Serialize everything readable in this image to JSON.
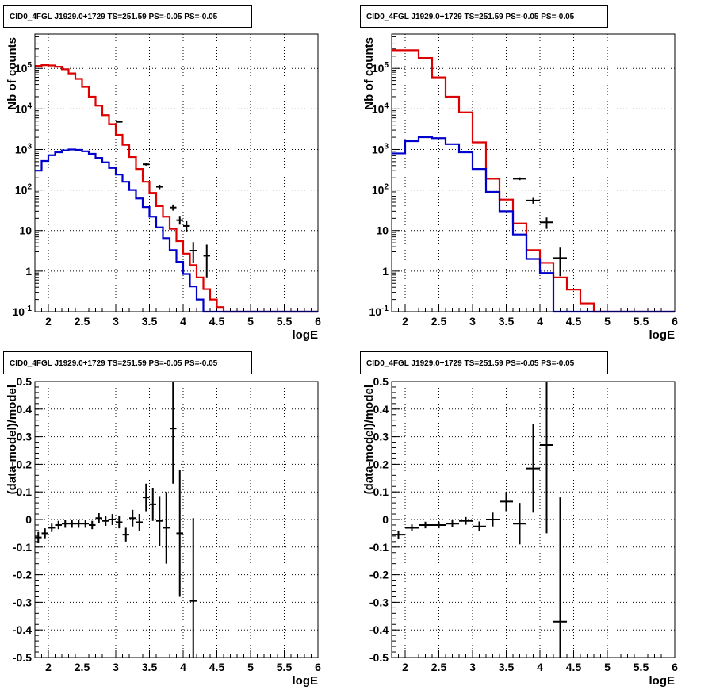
{
  "chart_data": [
    {
      "type": "line",
      "panel": "top-left",
      "title": "CID0_4FGL J1929.0+1729 TS=251.59 PS=-0.05 PS=-0.05",
      "xlabel": "logE",
      "ylabel": "Nb of counts",
      "yscale": "log",
      "xlim": [
        1.8,
        6
      ],
      "ylim": [
        0.1,
        700000
      ],
      "grid": true,
      "x_ticks": [
        "2",
        "2.5",
        "3",
        "3.5",
        "4",
        "4.5",
        "5",
        "5.5",
        "6"
      ],
      "y_ticks": [
        "10^-1",
        "1",
        "10",
        "10^2",
        "10^3",
        "10^4",
        "10^5"
      ],
      "bin_edges": [
        1.8,
        1.9,
        2.0,
        2.1,
        2.2,
        2.3,
        2.4,
        2.5,
        2.6,
        2.7,
        2.8,
        2.9,
        3.0,
        3.1,
        3.2,
        3.3,
        3.4,
        3.5,
        3.6,
        3.7,
        3.8,
        3.9,
        4.0,
        4.1,
        4.2,
        4.3,
        4.4,
        4.5,
        4.6,
        4.7,
        4.8,
        4.9,
        5.0,
        5.1,
        5.2,
        5.3,
        5.4,
        5.5,
        5.6,
        5.7,
        5.8,
        5.9,
        6.0
      ],
      "series": [
        {
          "color": "#dd0000",
          "values": [
            115000,
            120000,
            118000,
            110000,
            95000,
            75000,
            55000,
            35000,
            20000,
            12000,
            7000,
            4200,
            2300,
            1300,
            650,
            330,
            160,
            85,
            40,
            22,
            11,
            5.5,
            2.7,
            1.4,
            0.7,
            0.36,
            0.2,
            0.13,
            0.1,
            0.1,
            0.1,
            0.1,
            0.1,
            0.1,
            0.1,
            0.1,
            0.1,
            0.1,
            0.1,
            0.1,
            0.1,
            0.1
          ]
        },
        {
          "color": "#0000cc",
          "values": [
            300,
            520,
            720,
            850,
            950,
            1000,
            980,
            900,
            780,
            620,
            480,
            350,
            240,
            160,
            100,
            62,
            38,
            22,
            12,
            6.5,
            3.3,
            1.7,
            0.85,
            0.42,
            0.2,
            0.1,
            0.1,
            0.1,
            0.1,
            0.1,
            0.1,
            0.1,
            0.1,
            0.1,
            0.1,
            0.1,
            0.1,
            0.1,
            0.1,
            0.1,
            0.1,
            0.1
          ]
        }
      ],
      "points": [
        {
          "x": 3.05,
          "y": 4800,
          "xerr": 0.05,
          "ylo": 4600,
          "yhi": 5000
        },
        {
          "x": 3.45,
          "y": 430,
          "xerr": 0.05,
          "ylo": 400,
          "yhi": 460
        },
        {
          "x": 3.65,
          "y": 120,
          "xerr": 0.05,
          "ylo": 105,
          "yhi": 135
        },
        {
          "x": 3.85,
          "y": 37,
          "xerr": 0.05,
          "ylo": 31,
          "yhi": 44
        },
        {
          "x": 3.95,
          "y": 18,
          "xerr": 0.05,
          "ylo": 14,
          "yhi": 23
        },
        {
          "x": 4.05,
          "y": 13,
          "xerr": 0.05,
          "ylo": 9.5,
          "yhi": 17
        },
        {
          "x": 4.15,
          "y": 3.2,
          "xerr": 0.05,
          "ylo": 1.6,
          "yhi": 5.2
        },
        {
          "x": 4.35,
          "y": 2.4,
          "xerr": 0.05,
          "ylo": 0.7,
          "yhi": 4.5
        }
      ]
    },
    {
      "type": "line",
      "panel": "top-right",
      "title": "CID0_4FGL J1929.0+1729 TS=251.59 PS=-0.05 PS=-0.05",
      "xlabel": "logE",
      "ylabel": "Nb of counts",
      "yscale": "log",
      "xlim": [
        1.8,
        6
      ],
      "ylim": [
        0.1,
        700000
      ],
      "grid": true,
      "x_ticks": [
        "2",
        "2.5",
        "3",
        "3.5",
        "4",
        "4.5",
        "5",
        "5.5",
        "6"
      ],
      "y_ticks": [
        "10^-1",
        "1",
        "10",
        "10^2",
        "10^3",
        "10^4",
        "10^5"
      ],
      "bin_edges": [
        1.8,
        2.0,
        2.2,
        2.4,
        2.6,
        2.8,
        3.0,
        3.2,
        3.4,
        3.6,
        3.8,
        4.0,
        4.2,
        4.4,
        4.6,
        4.8,
        5.0,
        5.2,
        5.4,
        5.6,
        5.8,
        6.0
      ],
      "series": [
        {
          "color": "#dd0000",
          "values": [
            280000,
            280000,
            180000,
            60000,
            20000,
            8200,
            1500,
            190,
            58,
            15,
            3.3,
            1.6,
            0.7,
            0.35,
            0.16,
            0.1,
            0.1,
            0.1,
            0.1,
            0.1,
            0.1
          ]
        },
        {
          "color": "#0000cc",
          "values": [
            800,
            1600,
            2000,
            1900,
            1350,
            850,
            330,
            90,
            30,
            8,
            2,
            0.9,
            0.1,
            0.1,
            0.1,
            0.1,
            0.1,
            0.1,
            0.1,
            0.1,
            0.1
          ]
        }
      ],
      "points": [
        {
          "x": 3.7,
          "y": 190,
          "xerr": 0.1,
          "ylo": 175,
          "yhi": 205
        },
        {
          "x": 3.9,
          "y": 55,
          "xerr": 0.1,
          "ylo": 46,
          "yhi": 64
        },
        {
          "x": 4.1,
          "y": 16,
          "xerr": 0.1,
          "ylo": 11,
          "yhi": 21
        },
        {
          "x": 4.3,
          "y": 2.1,
          "xerr": 0.1,
          "ylo": 0.75,
          "yhi": 3.8
        }
      ]
    },
    {
      "type": "scatter",
      "panel": "bottom-left",
      "title": "CID0_4FGL J1929.0+1729 TS=251.59 PS=-0.05 PS=-0.05",
      "xlabel": "logE",
      "ylabel": "(data-model)/model",
      "xlim": [
        1.8,
        6
      ],
      "ylim": [
        -0.5,
        0.5
      ],
      "grid": true,
      "x_ticks": [
        "2",
        "2.5",
        "3",
        "3.5",
        "4",
        "4.5",
        "5",
        "5.5",
        "6"
      ],
      "y_ticks": [
        "-0.5",
        "-0.4",
        "-0.3",
        "-0.2",
        "-0.1",
        "0",
        "0.1",
        "0.2",
        "0.3",
        "0.4",
        "0.5"
      ],
      "points": [
        {
          "x": 1.85,
          "y": -0.065,
          "xerr": 0.05,
          "err": 0.02
        },
        {
          "x": 1.95,
          "y": -0.05,
          "xerr": 0.05,
          "err": 0.018
        },
        {
          "x": 2.05,
          "y": -0.03,
          "xerr": 0.05,
          "err": 0.015
        },
        {
          "x": 2.15,
          "y": -0.02,
          "xerr": 0.05,
          "err": 0.015
        },
        {
          "x": 2.25,
          "y": -0.015,
          "xerr": 0.05,
          "err": 0.015
        },
        {
          "x": 2.35,
          "y": -0.015,
          "xerr": 0.05,
          "err": 0.015
        },
        {
          "x": 2.45,
          "y": -0.015,
          "xerr": 0.05,
          "err": 0.015
        },
        {
          "x": 2.55,
          "y": -0.015,
          "xerr": 0.05,
          "err": 0.015
        },
        {
          "x": 2.65,
          "y": -0.02,
          "xerr": 0.05,
          "err": 0.015
        },
        {
          "x": 2.75,
          "y": 0.005,
          "xerr": 0.05,
          "err": 0.018
        },
        {
          "x": 2.85,
          "y": -0.005,
          "xerr": 0.05,
          "err": 0.018
        },
        {
          "x": 2.95,
          "y": 0.0,
          "xerr": 0.05,
          "err": 0.02
        },
        {
          "x": 3.05,
          "y": -0.01,
          "xerr": 0.05,
          "err": 0.022
        },
        {
          "x": 3.15,
          "y": -0.055,
          "xerr": 0.05,
          "err": 0.025
        },
        {
          "x": 3.25,
          "y": 0.005,
          "xerr": 0.05,
          "err": 0.03
        },
        {
          "x": 3.35,
          "y": -0.01,
          "xerr": 0.05,
          "err": 0.03
        },
        {
          "x": 3.45,
          "y": 0.08,
          "xerr": 0.05,
          "err": 0.05
        },
        {
          "x": 3.55,
          "y": 0.055,
          "xerr": 0.05,
          "err": 0.06
        },
        {
          "x": 3.65,
          "y": -0.005,
          "xerr": 0.05,
          "err": 0.09
        },
        {
          "x": 3.75,
          "y": -0.03,
          "xerr": 0.05,
          "err": 0.13
        },
        {
          "x": 3.85,
          "y": 0.33,
          "xerr": 0.05,
          "err": 0.2
        },
        {
          "x": 3.95,
          "y": -0.05,
          "xerr": 0.05,
          "err": 0.23
        },
        {
          "x": 4.15,
          "y": -0.295,
          "xerr": 0.05,
          "err": 0.3
        }
      ]
    },
    {
      "type": "scatter",
      "panel": "bottom-right",
      "title": "CID0_4FGL J1929.0+1729 TS=251.59 PS=-0.05 PS=-0.05",
      "xlabel": "logE",
      "ylabel": "(data-model)/model",
      "xlim": [
        1.8,
        6
      ],
      "ylim": [
        -0.5,
        0.5
      ],
      "grid": true,
      "x_ticks": [
        "2",
        "2.5",
        "3",
        "3.5",
        "4",
        "4.5",
        "5",
        "5.5",
        "6"
      ],
      "y_ticks": [
        "-0.5",
        "-0.4",
        "-0.3",
        "-0.2",
        "-0.1",
        "0",
        "0.1",
        "0.2",
        "0.3",
        "0.4",
        "0.5"
      ],
      "points": [
        {
          "x": 1.9,
          "y": -0.055,
          "xerr": 0.1,
          "err": 0.015
        },
        {
          "x": 2.1,
          "y": -0.03,
          "xerr": 0.1,
          "err": 0.012
        },
        {
          "x": 2.3,
          "y": -0.02,
          "xerr": 0.1,
          "err": 0.012
        },
        {
          "x": 2.5,
          "y": -0.02,
          "xerr": 0.1,
          "err": 0.012
        },
        {
          "x": 2.7,
          "y": -0.015,
          "xerr": 0.1,
          "err": 0.012
        },
        {
          "x": 2.9,
          "y": -0.005,
          "xerr": 0.1,
          "err": 0.014
        },
        {
          "x": 3.1,
          "y": -0.025,
          "xerr": 0.1,
          "err": 0.018
        },
        {
          "x": 3.3,
          "y": 0.0,
          "xerr": 0.1,
          "err": 0.025
        },
        {
          "x": 3.5,
          "y": 0.065,
          "xerr": 0.1,
          "err": 0.035
        },
        {
          "x": 3.7,
          "y": -0.015,
          "xerr": 0.1,
          "err": 0.075
        },
        {
          "x": 3.9,
          "y": 0.185,
          "xerr": 0.1,
          "err": 0.16
        },
        {
          "x": 4.1,
          "y": 0.27,
          "xerr": 0.1,
          "err": 0.32
        },
        {
          "x": 4.3,
          "y": -0.37,
          "xerr": 0.1,
          "err": 0.45
        }
      ]
    }
  ]
}
